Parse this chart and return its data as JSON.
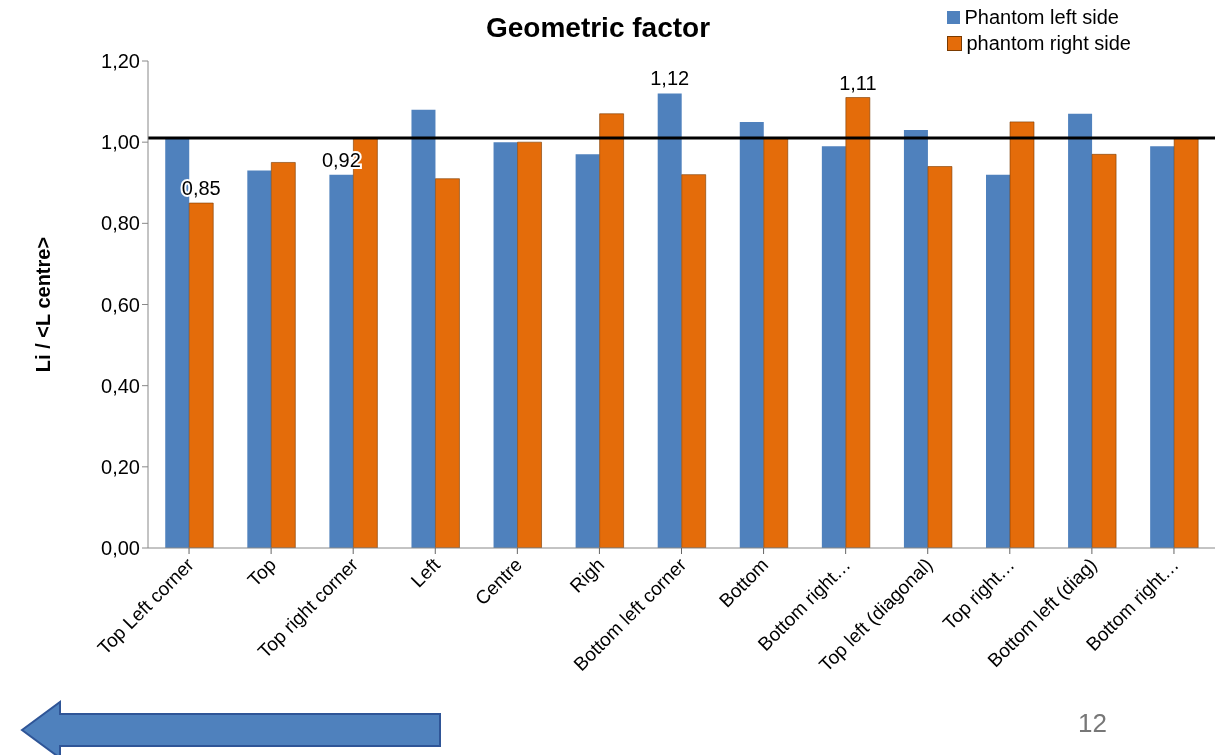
{
  "chart_data": {
    "type": "bar",
    "title": "Geometric factor",
    "ylabel": "Li  /  <L centre>",
    "categories": [
      "Top Left corner",
      "Top",
      "Top right corner",
      "Left",
      "Centre",
      "Righ",
      "Bottom left corner",
      "Bottom",
      "Bottom right…",
      "Top left (diagonal)",
      "Top right…",
      "Bottom left (diag)",
      "Bottom right…"
    ],
    "series": [
      {
        "name": "Phantom left side",
        "color": "#4f81bd",
        "values": [
          1.01,
          0.93,
          0.92,
          1.08,
          1.0,
          0.97,
          1.12,
          1.05,
          0.99,
          1.03,
          0.92,
          1.07,
          0.99
        ],
        "value_labels": [
          null,
          null,
          "0,92",
          null,
          null,
          null,
          "1,12",
          null,
          null,
          null,
          null,
          null,
          null
        ]
      },
      {
        "name": "phantom right side",
        "color": "#e46c0a",
        "values": [
          0.85,
          0.95,
          1.01,
          0.91,
          1.0,
          1.07,
          0.92,
          1.01,
          1.11,
          0.94,
          1.05,
          0.97,
          1.01
        ],
        "value_labels": [
          "0,85",
          null,
          null,
          null,
          null,
          null,
          null,
          null,
          "1,11",
          null,
          null,
          null,
          null
        ]
      }
    ],
    "ylim": [
      0,
      1.2
    ],
    "yticks": [
      {
        "value": 0,
        "label": "0,00"
      },
      {
        "value": 0.2,
        "label": "0,20"
      },
      {
        "value": 0.4,
        "label": "0,40"
      },
      {
        "value": 0.6,
        "label": "0,60"
      },
      {
        "value": 0.8,
        "label": "0,80"
      },
      {
        "value": 1.0,
        "label": "1,00"
      },
      {
        "value": 1.2,
        "label": "1,20"
      }
    ],
    "ref_lines": [
      {
        "axis": "y",
        "value": 1.01,
        "color": "#000000"
      }
    ],
    "grid": false,
    "legend": "top right",
    "annotations": [
      "12"
    ]
  }
}
